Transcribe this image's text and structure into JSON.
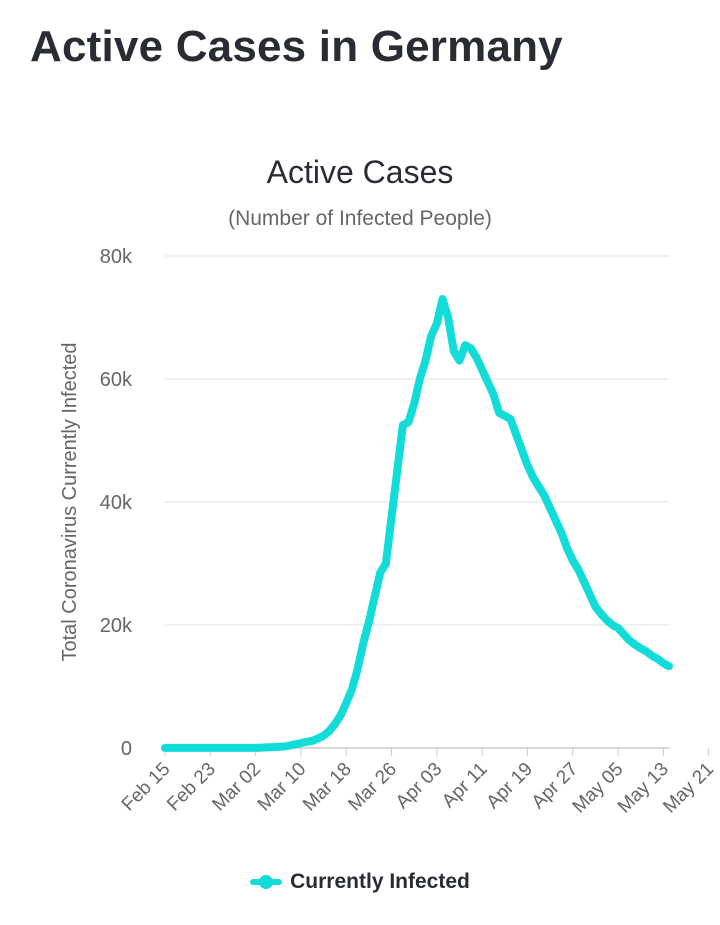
{
  "page": {
    "title": "Active Cases in Germany"
  },
  "chart_data": {
    "type": "line",
    "title": "Active Cases",
    "subtitle": "(Number of Infected People)",
    "xlabel": "",
    "ylabel": "Total Coronavirus Currently Infected",
    "ylim": [
      0,
      80000
    ],
    "y_ticks": [
      0,
      20000,
      40000,
      60000,
      80000
    ],
    "y_tick_labels": [
      "0",
      "20k",
      "40k",
      "60k",
      "80k"
    ],
    "x_tick_labels": [
      "Feb 15",
      "Feb 23",
      "Mar 02",
      "Mar 10",
      "Mar 18",
      "Mar 26",
      "Apr 03",
      "Apr 11",
      "Apr 19",
      "Apr 27",
      "May 05",
      "May 13",
      "May 21"
    ],
    "x_start": "Feb 15",
    "grid": true,
    "legend_position": "bottom",
    "colors": {
      "series": "#12dcd8",
      "grid": "#dde0e4",
      "axis": "#c8ccd4",
      "text": "#666666"
    },
    "series": [
      {
        "name": "Currently Infected",
        "values": [
          16,
          16,
          16,
          16,
          16,
          16,
          16,
          16,
          16,
          16,
          16,
          16,
          16,
          16,
          16,
          16,
          28,
          60,
          100,
          150,
          180,
          240,
          400,
          600,
          790,
          1000,
          1150,
          1550,
          2000,
          2750,
          3900,
          5300,
          7300,
          9500,
          12800,
          17000,
          20500,
          24500,
          28500,
          30000,
          37500,
          45000,
          52500,
          53000,
          56000,
          60000,
          63000,
          67000,
          69000,
          73000,
          70000,
          64500,
          63000,
          65500,
          65000,
          63500,
          61500,
          59500,
          57500,
          54500,
          54000,
          53500,
          51000,
          48500,
          46000,
          44000,
          42500,
          41000,
          39000,
          37000,
          35000,
          32500,
          30500,
          29000,
          27000,
          25000,
          23000,
          21800,
          20800,
          20000,
          19500,
          18500,
          17500,
          16800,
          16200,
          15700,
          15000,
          14500,
          13800,
          13300
        ]
      }
    ]
  }
}
